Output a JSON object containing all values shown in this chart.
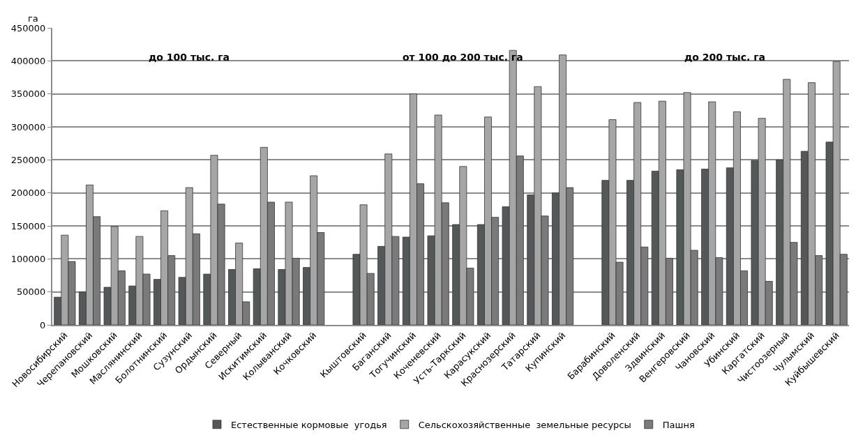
{
  "chart_data": {
    "type": "bar",
    "ylabel": "га",
    "categories": [
      "Новосибирский",
      "Черепановский",
      "Мошковский",
      "Маслянинский",
      "Болотнинский",
      "Сузунский",
      "Ордынский",
      "Северный",
      "Искитимский",
      "Колыванский",
      "Кочковский",
      null,
      "Кыштовский",
      "Баганский",
      "Тогучинский",
      "Коченевский",
      "Усть-Таркский",
      "Карасукский",
      "Краснозерский",
      "Татарский",
      "Купинский",
      null,
      "Барабинский",
      "Доволенский",
      "Здвинский",
      "Венгеровский",
      "Чановский",
      "Убинский",
      "Каргатский",
      "Чистоозерный",
      "Чулымский",
      "Куйбышевский"
    ],
    "series": [
      {
        "name": "Естественные кормовые  угодья",
        "color": "#555859",
        "values": [
          42000,
          50000,
          57000,
          59000,
          69000,
          72000,
          77000,
          84000,
          85000,
          84000,
          87000,
          null,
          107000,
          119000,
          133000,
          135000,
          152000,
          152000,
          179000,
          197000,
          200000,
          null,
          219000,
          219000,
          233000,
          235000,
          236000,
          238000,
          249000,
          250000,
          263000,
          277000
        ]
      },
      {
        "name": "Сельскохозяйственные  земельные ресурсы",
        "color": "#a6a6a6",
        "values": [
          136000,
          212000,
          149000,
          134000,
          173000,
          208000,
          257000,
          124000,
          269000,
          186000,
          226000,
          null,
          182000,
          259000,
          350000,
          318000,
          240000,
          315000,
          416000,
          361000,
          409000,
          null,
          311000,
          337000,
          339000,
          352000,
          338000,
          323000,
          313000,
          372000,
          367000,
          399000
        ]
      },
      {
        "name": "Пашня",
        "color": "#7a7a7a",
        "values": [
          96000,
          164000,
          82000,
          77000,
          105000,
          138000,
          183000,
          35000,
          186000,
          101000,
          140000,
          null,
          78000,
          134000,
          214000,
          185000,
          86000,
          163000,
          256000,
          165000,
          208000,
          null,
          95000,
          118000,
          101000,
          113000,
          102000,
          82000,
          66000,
          125000,
          105000,
          107000
        ]
      }
    ],
    "ylim": [
      0,
      450000
    ],
    "yticks": [
      0,
      50000,
      100000,
      150000,
      200000,
      250000,
      300000,
      350000,
      400000,
      450000
    ],
    "grid": "y",
    "legend": "bottom",
    "annotations": [
      "до 100 тыс. га",
      "от 100 до 200 тыс. га",
      "до 200 тыс. га"
    ]
  }
}
